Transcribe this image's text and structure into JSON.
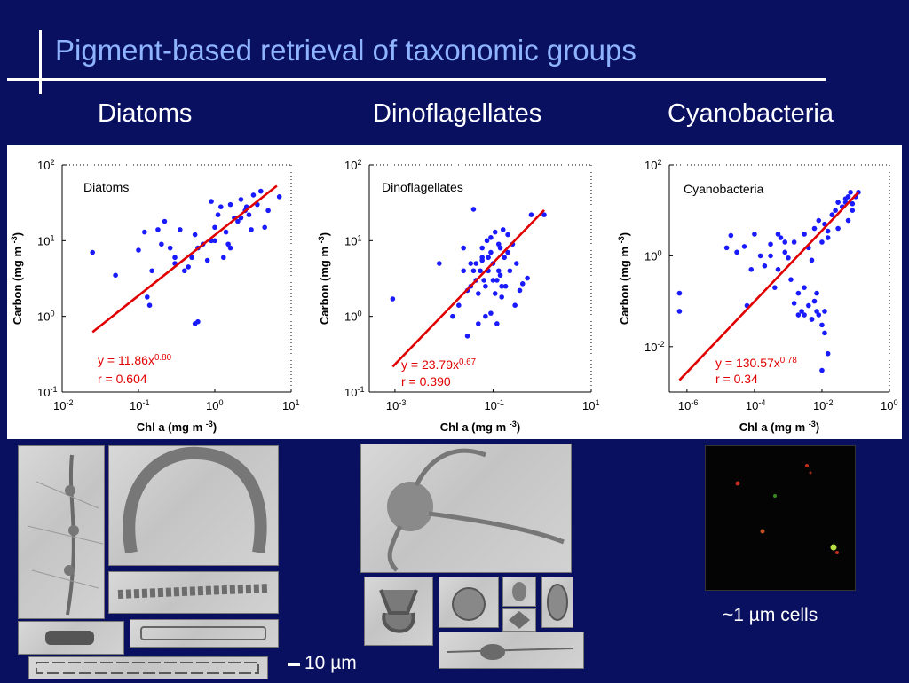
{
  "slide": {
    "title": "Pigment-based retrieval of taxonomic groups",
    "group_labels": [
      "Diatoms",
      "Dinoflagellates",
      "Cyanobacteria"
    ],
    "cells_caption": "~1 µm cells",
    "scale_caption": "10 µm"
  },
  "colors": {
    "background": "#0a1060",
    "title": "#8fb4ff",
    "points": "#1a1aff",
    "fit_line": "#e00000",
    "fit_text": "#e00000"
  },
  "chart_data": [
    {
      "type": "scatter",
      "inset_label": "Diatoms",
      "xlabel": "Chl a (mg m ",
      "xlabel_sup": "-3",
      "xlabel_end": ")",
      "ylabel": "Carbon (mg m ",
      "ylabel_sup": "-3",
      "ylabel_end": ")",
      "x_scale": "log",
      "y_scale": "log",
      "xlim": [
        0.01,
        10
      ],
      "ylim": [
        0.1,
        100
      ],
      "x_ticks": [
        {
          "base": "10",
          "exp": "-2",
          "value": 0.01
        },
        {
          "base": "10",
          "exp": "-1",
          "value": 0.1
        },
        {
          "base": "10",
          "exp": "0",
          "value": 1
        },
        {
          "base": "10",
          "exp": "1",
          "value": 10
        }
      ],
      "y_ticks": [
        {
          "base": "10",
          "exp": "-1",
          "value": 0.1
        },
        {
          "base": "10",
          "exp": "0",
          "value": 1
        },
        {
          "base": "10",
          "exp": "1",
          "value": 10
        },
        {
          "base": "10",
          "exp": "2",
          "value": 100
        }
      ],
      "fit": {
        "a": 11.86,
        "b": 0.8,
        "x_range": [
          0.025,
          6.5
        ]
      },
      "equation": "y = 11.86x",
      "equation_exp": "0.80",
      "r_label": "r = 0.604",
      "series": [
        {
          "x": [
            0.025,
            0.05,
            0.1,
            0.12,
            0.15,
            0.18,
            0.22,
            0.26,
            0.3,
            0.35,
            0.4,
            0.45,
            0.5,
            0.55,
            0.6,
            0.7,
            0.8,
            0.9,
            1.0,
            1.1,
            1.2,
            1.4,
            1.6,
            1.8,
            2.0,
            2.2,
            2.5,
            2.8,
            3.2,
            3.6,
            4.0,
            4.5,
            5.0,
            7.0,
            0.13,
            0.14,
            0.55,
            0.6,
            0.2,
            0.3,
            1.3,
            1.6,
            2.2,
            2.6,
            0.9,
            1.0,
            3.0,
            1.5
          ],
          "y": [
            7,
            3.5,
            7.5,
            13,
            4,
            14,
            18,
            8,
            6,
            14,
            4,
            4.5,
            6,
            12,
            8,
            9,
            5.5,
            10,
            15,
            22,
            28,
            13,
            30,
            20,
            18,
            35,
            25,
            22,
            40,
            30,
            45,
            15,
            25,
            38,
            1.8,
            1.4,
            0.8,
            0.85,
            9,
            5,
            6,
            8,
            20,
            28,
            33,
            10,
            14,
            9
          ]
        }
      ]
    },
    {
      "type": "scatter",
      "inset_label": "Dinoflagellates",
      "xlabel": "Chl a (mg m ",
      "xlabel_sup": "-3",
      "xlabel_end": ")",
      "ylabel": "Carbon (mg m ",
      "ylabel_sup": "-3",
      "ylabel_end": ")",
      "x_scale": "log",
      "y_scale": "log",
      "xlim": [
        0.0003,
        10
      ],
      "ylim": [
        0.1,
        100
      ],
      "x_ticks": [
        {
          "base": "10",
          "exp": "-3",
          "value": 0.001
        },
        {
          "base": "10",
          "exp": "-1",
          "value": 0.1
        },
        {
          "base": "10",
          "exp": "1",
          "value": 10
        }
      ],
      "y_ticks": [
        {
          "base": "10",
          "exp": "-1",
          "value": 0.1
        },
        {
          "base": "10",
          "exp": "0",
          "value": 1
        },
        {
          "base": "10",
          "exp": "1",
          "value": 10
        },
        {
          "base": "10",
          "exp": "2",
          "value": 100
        }
      ],
      "fit": {
        "a": 23.79,
        "b": 0.67,
        "x_range": [
          0.0009,
          1.1
        ]
      },
      "equation": "y = 23.79x",
      "equation_exp": "0.67",
      "r_label": "r = 0.390",
      "series": [
        {
          "x": [
            0.0009,
            0.008,
            0.015,
            0.02,
            0.025,
            0.03,
            0.035,
            0.04,
            0.045,
            0.05,
            0.055,
            0.06,
            0.065,
            0.07,
            0.075,
            0.08,
            0.09,
            0.1,
            0.11,
            0.12,
            0.13,
            0.14,
            0.15,
            0.17,
            0.2,
            0.22,
            0.25,
            0.3,
            0.35,
            0.4,
            0.5,
            0.6,
            1.1,
            0.03,
            0.05,
            0.07,
            0.09,
            0.12,
            0.16,
            0.2,
            0.025,
            0.08,
            0.1,
            0.14,
            0.04,
            0.06,
            0.18,
            0.28,
            0.06,
            0.09,
            0.13,
            0.035,
            0.045,
            0.11,
            0.15
          ],
          "y": [
            1.7,
            5,
            1,
            1.4,
            8,
            2.2,
            5,
            26,
            3,
            2,
            4,
            5.5,
            3,
            2.5,
            10,
            4,
            7,
            5,
            13,
            3,
            9,
            3.5,
            1.8,
            6,
            7,
            4,
            9,
            5,
            2.2,
            2.7,
            3.2,
            22,
            22,
            0.55,
            0.8,
            1,
            1.1,
            0.8,
            14,
            12,
            4,
            6,
            3,
            8,
            4,
            6,
            2.5,
            1.4,
            8,
            11,
            4,
            2.5,
            5,
            2,
            2.5
          ]
        }
      ]
    },
    {
      "type": "scatter",
      "inset_label": "Cyanobacteria",
      "xlabel": "Chl a (mg m ",
      "xlabel_sup": "-3",
      "xlabel_end": ")",
      "ylabel": "Carbon (mg m ",
      "ylabel_sup": "-3",
      "ylabel_end": ")",
      "x_scale": "log",
      "y_scale": "log",
      "xlim": [
        3e-07,
        1
      ],
      "ylim": [
        0.001,
        100
      ],
      "x_ticks": [
        {
          "base": "10",
          "exp": "-6",
          "value": 1e-06
        },
        {
          "base": "10",
          "exp": "-4",
          "value": 0.0001
        },
        {
          "base": "10",
          "exp": "-2",
          "value": 0.01
        },
        {
          "base": "10",
          "exp": "0",
          "value": 1
        }
      ],
      "y_ticks": [
        {
          "base": "10",
          "exp": "-2",
          "value": 0.01
        },
        {
          "base": "10",
          "exp": "0",
          "value": 1
        },
        {
          "base": "10",
          "exp": "2",
          "value": 100
        }
      ],
      "fit": {
        "a": 130.57,
        "b": 0.78,
        "x_range": [
          6e-07,
          0.12
        ]
      },
      "equation": "y = 130.57x",
      "equation_exp": "0.78",
      "r_label": "r = 0.34",
      "series": [
        {
          "x": [
            6e-07,
            6e-07,
            1.5e-05,
            2e-05,
            3e-05,
            5e-05,
            6e-05,
            8e-05,
            0.0001,
            0.00015,
            0.0002,
            0.0003,
            0.0004,
            0.0005,
            0.0006,
            0.0008,
            0.001,
            0.0012,
            0.0015,
            0.002,
            0.0025,
            0.003,
            0.004,
            0.005,
            0.006,
            0.008,
            0.01,
            0.012,
            0.015,
            0.02,
            0.025,
            0.03,
            0.04,
            0.05,
            0.06,
            0.07,
            0.08,
            0.1,
            0.12,
            0.0015,
            0.002,
            0.003,
            0.004,
            0.005,
            0.006,
            0.007,
            0.008,
            0.01,
            0.012,
            0.015,
            0.0003,
            0.0005,
            0.0008,
            0.012,
            0.01,
            0.02,
            0.03,
            0.04,
            0.05,
            0.06,
            0.08,
            0.003,
            0.005,
            0.007,
            0.015
          ],
          "y": [
            0.15,
            0.06,
            1.5,
            2.8,
            1.2,
            1.6,
            0.08,
            0.5,
            3,
            1,
            0.6,
            1.8,
            0.2,
            0.5,
            2.5,
            1.2,
            0.9,
            0.3,
            2,
            0.05,
            0.06,
            3,
            1.5,
            0.8,
            4,
            6,
            2,
            5,
            2.5,
            8,
            10,
            4,
            12,
            15,
            20,
            25,
            10,
            20,
            25,
            0.09,
            0.15,
            0.05,
            0.08,
            0.04,
            0.1,
            0.06,
            0.05,
            0.03,
            0.02,
            0.007,
            1,
            3,
            2,
            0.06,
            0.003,
            8,
            15,
            12,
            18,
            6,
            14,
            0.2,
            0.04,
            0.15,
            3.5
          ]
        }
      ]
    }
  ]
}
